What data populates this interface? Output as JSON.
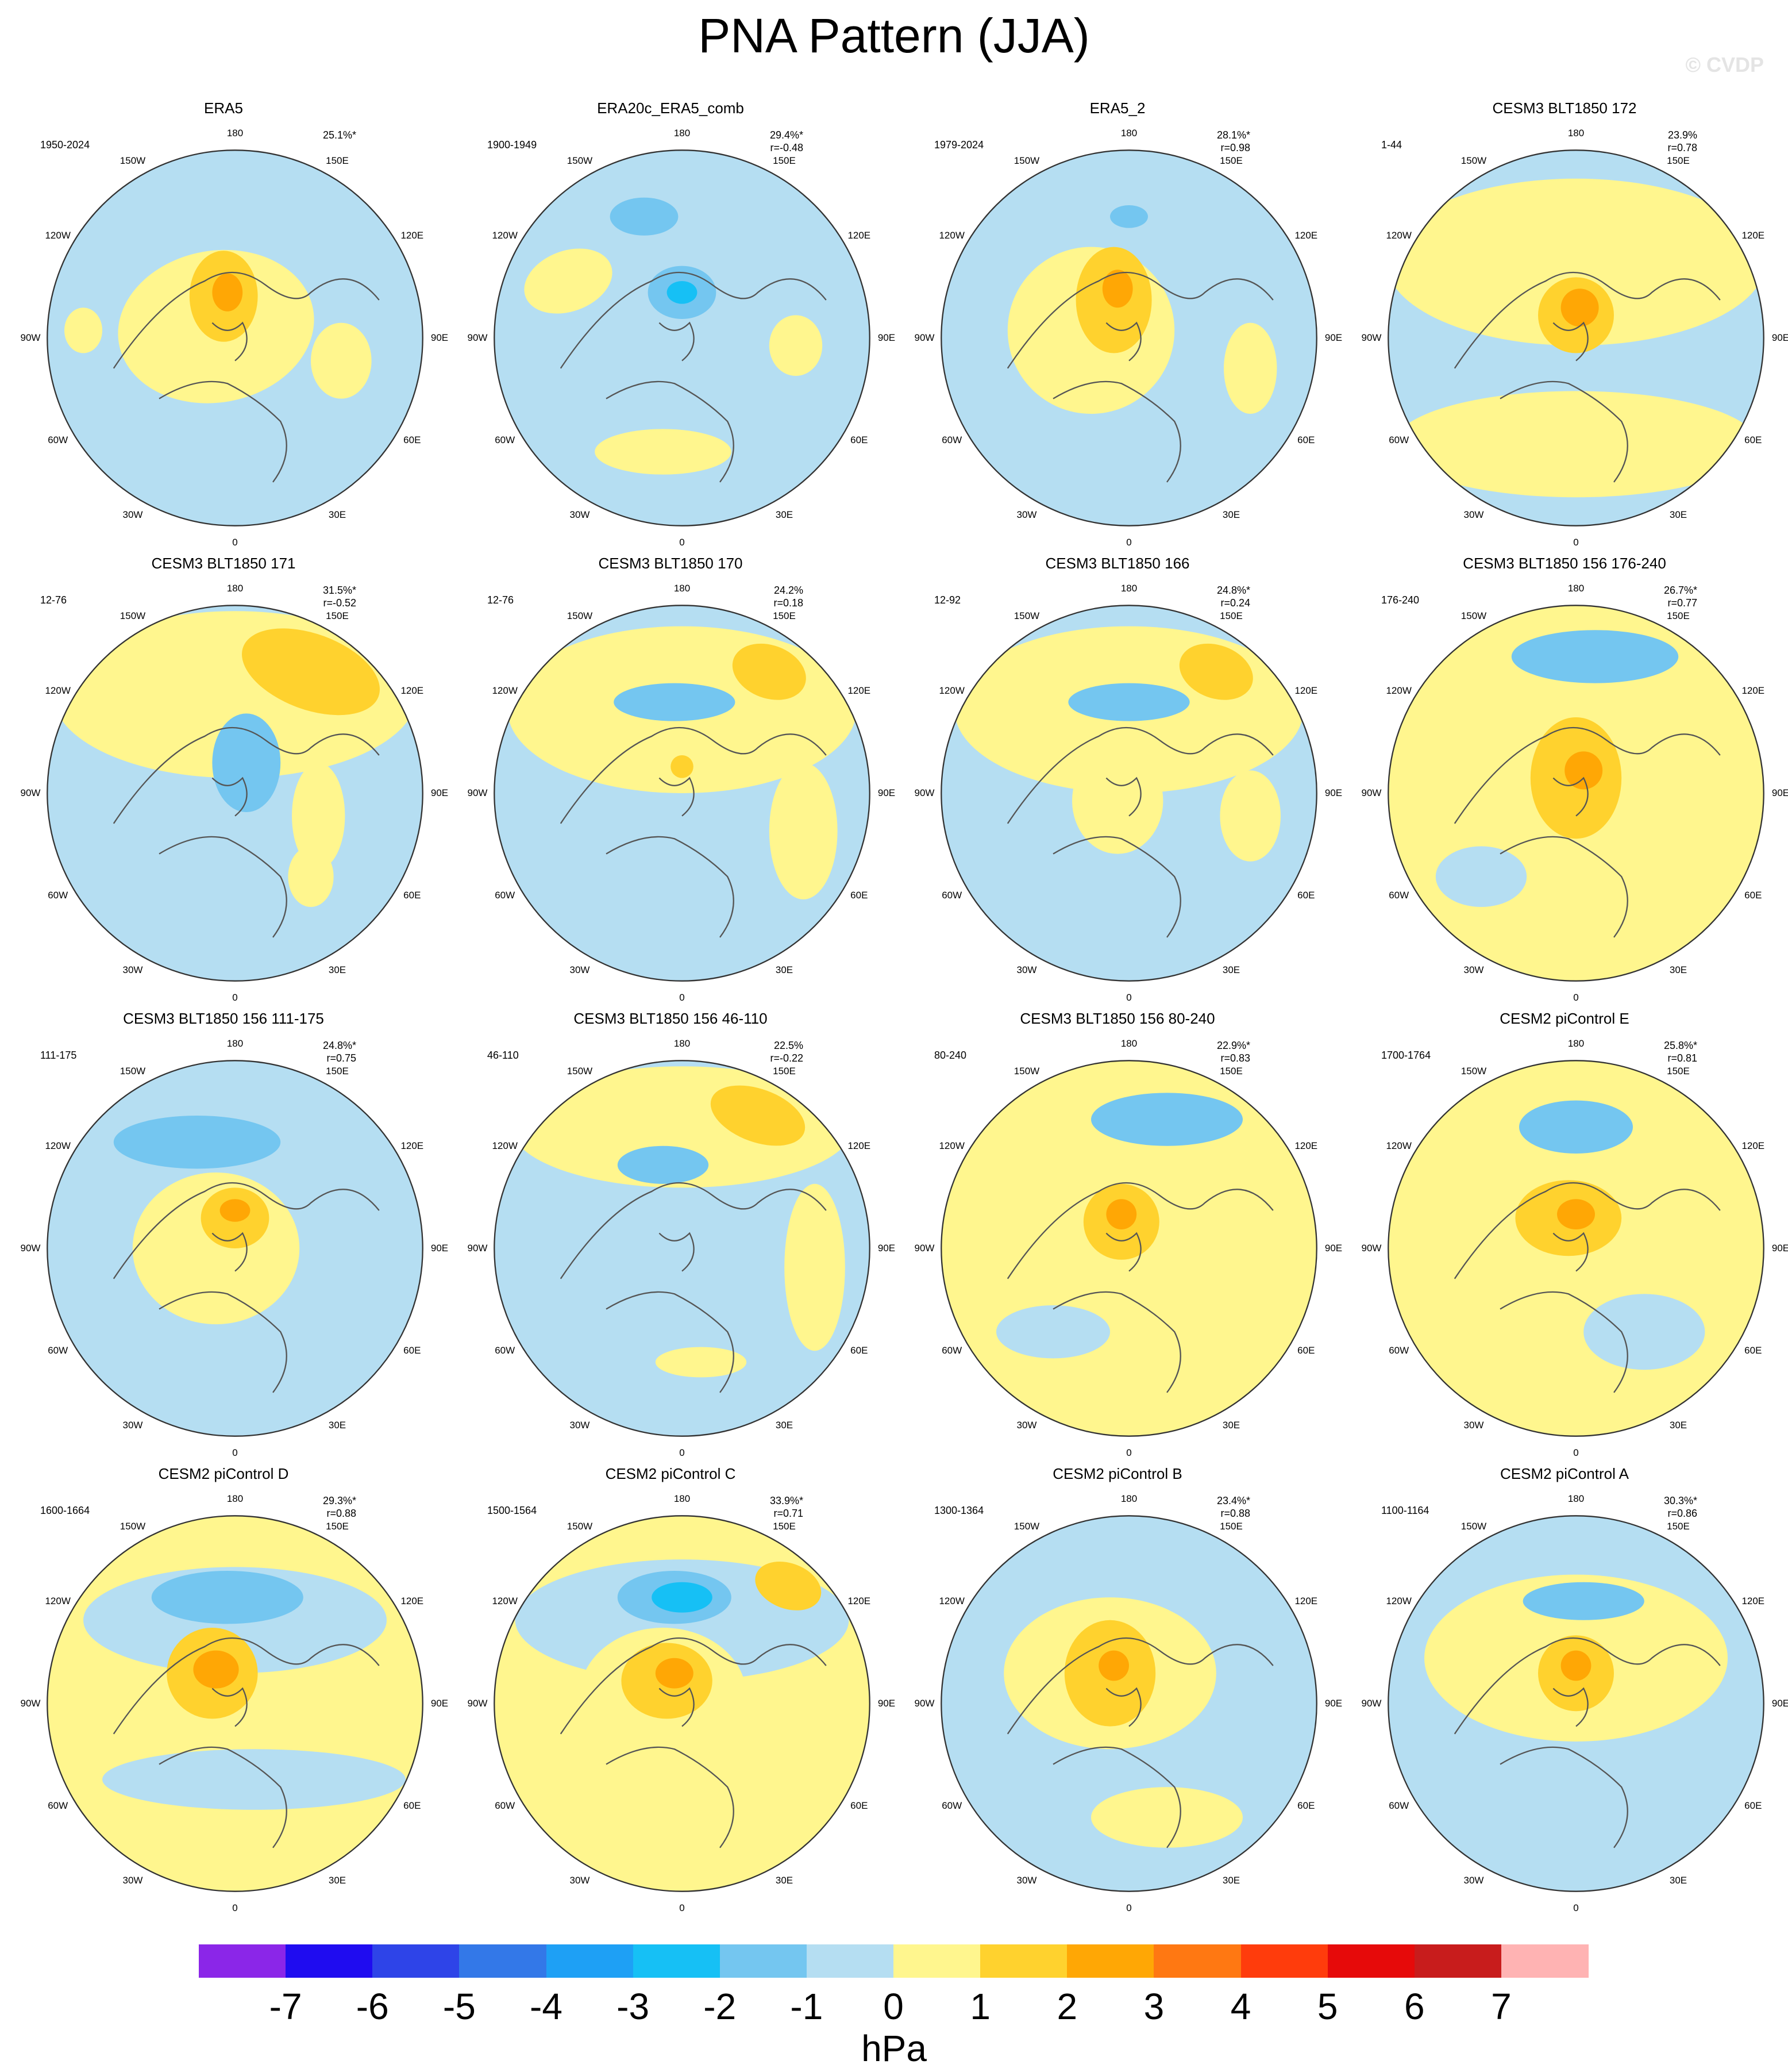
{
  "title": "PNA Pattern (JJA)",
  "watermark": "© CVDP",
  "units": "hPa",
  "colorbar": {
    "ticks": [
      "-7",
      "-6",
      "-5",
      "-4",
      "-3",
      "-2",
      "-1",
      "0",
      "1",
      "2",
      "3",
      "4",
      "5",
      "6",
      "7"
    ],
    "colors": [
      "#8b26e8",
      "#1f0cf0",
      "#2e44e8",
      "#3378e8",
      "#1ea0f5",
      "#16c0f5",
      "#74c6f0",
      "#b5def2",
      "#fff68e",
      "#ffd22e",
      "#ffa705",
      "#ff7812",
      "#ff3c0c",
      "#e60a0a",
      "#c81c1c",
      "#ffb3b3"
    ]
  },
  "lon_labels": [
    "180",
    "150E",
    "120E",
    "90E",
    "60E",
    "30E",
    "0",
    "30W",
    "60W",
    "90W",
    "120W",
    "150W"
  ],
  "panels": [
    {
      "title": "ERA5",
      "period": "1950-2024",
      "pct": "25.1%*",
      "r": ""
    },
    {
      "title": "ERA20c_ERA5_comb",
      "period": "1900-1949",
      "pct": "29.4%*",
      "r": "r=-0.48"
    },
    {
      "title": "ERA5_2",
      "period": "1979-2024",
      "pct": "28.1%*",
      "r": "r=0.98"
    },
    {
      "title": "CESM3 BLT1850 172",
      "period": "1-44",
      "pct": "23.9%",
      "r": "r=0.78"
    },
    {
      "title": "CESM3 BLT1850 171",
      "period": "12-76",
      "pct": "31.5%*",
      "r": "r=-0.52"
    },
    {
      "title": "CESM3 BLT1850 170",
      "period": "12-76",
      "pct": "24.2%",
      "r": "r=0.18"
    },
    {
      "title": "CESM3 BLT1850 166",
      "period": "12-92",
      "pct": "24.8%*",
      "r": "r=0.24"
    },
    {
      "title": "CESM3 BLT1850 156 176-240",
      "period": "176-240",
      "pct": "26.7%*",
      "r": "r=0.77"
    },
    {
      "title": "CESM3 BLT1850 156 111-175",
      "period": "111-175",
      "pct": "24.8%*",
      "r": "r=0.75"
    },
    {
      "title": "CESM3 BLT1850 156 46-110",
      "period": "46-110",
      "pct": "22.5%",
      "r": "r=-0.22"
    },
    {
      "title": "CESM3 BLT1850 156 80-240",
      "period": "80-240",
      "pct": "22.9%*",
      "r": "r=0.83"
    },
    {
      "title": "CESM2 piControl E",
      "period": "1700-1764",
      "pct": "25.8%*",
      "r": "r=0.81"
    },
    {
      "title": "CESM2 piControl D",
      "period": "1600-1664",
      "pct": "29.3%*",
      "r": "r=0.88"
    },
    {
      "title": "CESM2 piControl C",
      "period": "1500-1564",
      "pct": "33.9%*",
      "r": "r=0.71"
    },
    {
      "title": "CESM2 piControl B",
      "period": "1300-1364",
      "pct": "23.4%*",
      "r": "r=0.88"
    },
    {
      "title": "CESM2 piControl A",
      "period": "1100-1164",
      "pct": "30.3%*",
      "r": "r=0.86"
    }
  ]
}
